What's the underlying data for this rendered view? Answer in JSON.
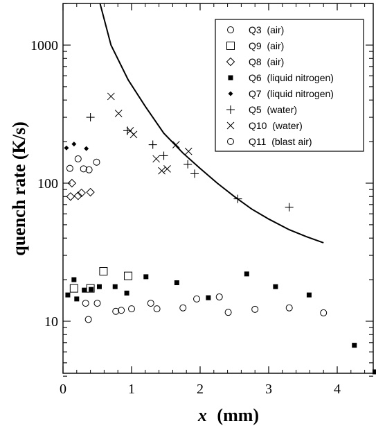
{
  "chart_data": {
    "type": "scatter",
    "xlabel_var": "x",
    "xlabel_unit": "(mm)",
    "ylabel": "quench rate (K/s)",
    "xlim": [
      0,
      4.55
    ],
    "ylim": [
      4,
      2000
    ],
    "yscale": "log",
    "x_ticks": [
      "0",
      "1",
      "2",
      "3",
      "4"
    ],
    "y_ticks": [
      "10",
      "100",
      "1000"
    ],
    "legend_position": "top-right",
    "series": [
      {
        "name": "Q3  (air)",
        "marker": "circle-open",
        "x": [
          0.33,
          0.5,
          0.85,
          1.28,
          1.75,
          2.28,
          2.8,
          3.8
        ],
        "y": [
          13.5,
          13.5,
          12.0,
          13.5,
          12.5,
          15.0,
          12.2,
          11.5
        ]
      },
      {
        "name": "Q9  (air)",
        "marker": "square-open",
        "x": [
          0.16,
          0.4,
          0.59,
          0.95
        ],
        "y": [
          17.3,
          17.3,
          23.0,
          21.3
        ]
      },
      {
        "name": "Q8  (air)",
        "marker": "diamond-open",
        "x": [
          0.11,
          0.13,
          0.22,
          0.27,
          0.4
        ],
        "y": [
          80,
          100,
          81,
          85,
          86
        ]
      },
      {
        "name": "Q6  (liquid nitrogen)",
        "marker": "square-filled",
        "x": [
          0.07,
          0.16,
          0.2,
          0.31,
          0.41,
          0.53,
          0.76,
          0.93,
          1.21,
          1.66,
          2.12,
          2.68,
          3.1,
          3.59,
          4.25,
          4.55
        ],
        "y": [
          15.5,
          20.0,
          14.5,
          16.8,
          17.0,
          17.8,
          17.8,
          16.0,
          21.0,
          19.0,
          14.8,
          22.0,
          17.8,
          15.5,
          6.7,
          4.3
        ]
      },
      {
        "name": "Q7  (liquid nitrogen)",
        "marker": "diamond-filled",
        "x": [
          0.05,
          0.16,
          0.34
        ],
        "y": [
          180,
          192,
          178
        ]
      },
      {
        "name": "Q5  (water)",
        "marker": "plus",
        "x": [
          0.4,
          0.94,
          1.31,
          1.47,
          1.82,
          1.92,
          2.55,
          3.3
        ],
        "y": [
          300,
          240,
          190,
          158,
          137,
          117,
          77,
          67
        ]
      },
      {
        "name": "Q10  (water)",
        "marker": "x",
        "x": [
          0.7,
          0.81,
          0.98,
          1.03,
          1.36,
          1.44,
          1.52,
          1.65,
          1.83
        ],
        "y": [
          425,
          320,
          240,
          225,
          150,
          123,
          127,
          190,
          170
        ]
      },
      {
        "name": "Q11  (blast air)",
        "marker": "circle-open",
        "x": [
          0.1,
          0.22,
          0.3,
          0.38,
          0.49,
          0.37,
          0.77,
          1.0,
          1.37,
          1.95,
          2.41,
          3.3
        ],
        "y": [
          128,
          150,
          127,
          125,
          142,
          10.3,
          11.8,
          12.3,
          12.3,
          14.5,
          11.6,
          12.5
        ]
      }
    ],
    "curve": {
      "name": "",
      "x": [
        0.54,
        0.7,
        0.95,
        1.2,
        1.47,
        1.75,
        2.0,
        2.25,
        2.5,
        2.75,
        3.0,
        3.3,
        3.55,
        3.8
      ],
      "y": [
        2000,
        1000,
        560,
        360,
        230,
        165,
        128,
        100,
        80,
        65,
        55,
        46,
        41,
        37
      ]
    }
  }
}
